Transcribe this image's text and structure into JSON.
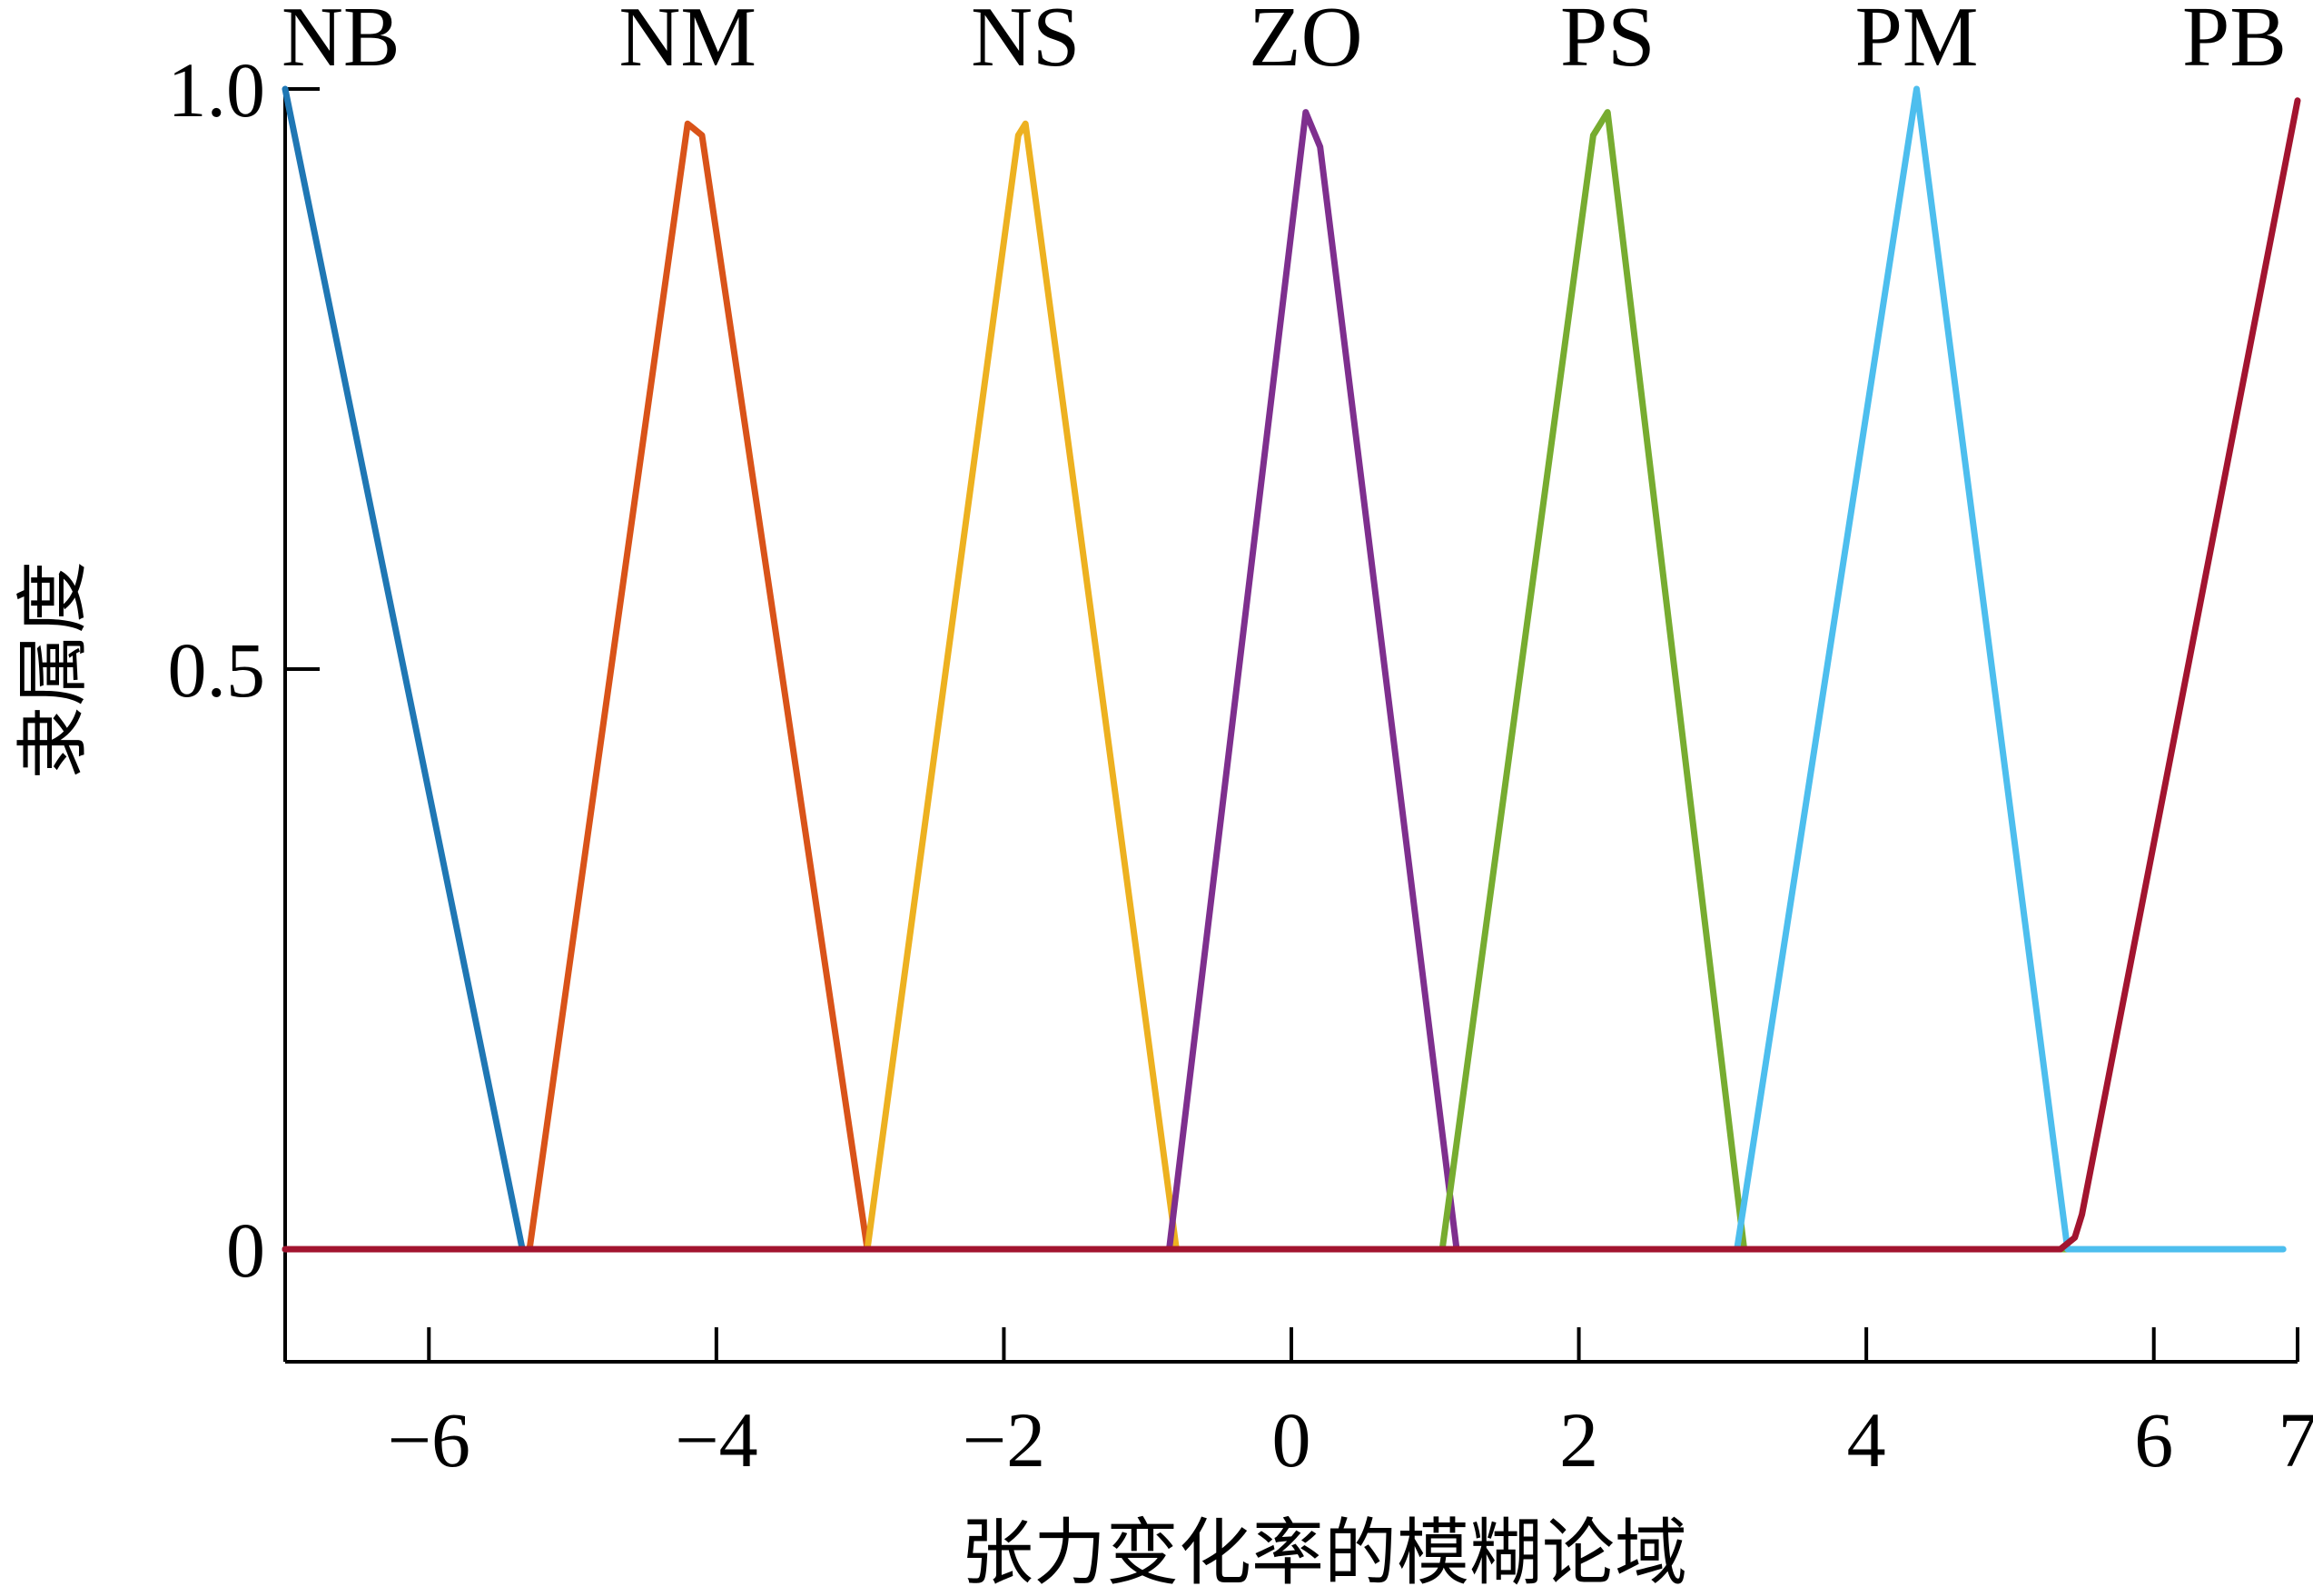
{
  "chart_data": {
    "type": "line",
    "title": "",
    "xlabel": "张力变化率的模糊论域",
    "ylabel": "隶属度",
    "xlim": [
      -7,
      7
    ],
    "ylim": [
      -0.1,
      1.0
    ],
    "grid": false,
    "x_ticks": [
      {
        "value": -6,
        "label": "−6"
      },
      {
        "value": -4,
        "label": "−4"
      },
      {
        "value": -2,
        "label": "−2"
      },
      {
        "value": 0,
        "label": "0"
      },
      {
        "value": 2,
        "label": "2"
      },
      {
        "value": 4,
        "label": "4"
      },
      {
        "value": 6,
        "label": "6"
      },
      {
        "value": 7,
        "label": "7"
      }
    ],
    "y_ticks": [
      {
        "value": 0,
        "label": "0"
      },
      {
        "value": 0.5,
        "label": "0.5"
      },
      {
        "value": 1.0,
        "label": "1.0"
      }
    ],
    "series": [
      {
        "name": "NB",
        "color": "#1f77b4",
        "peak": -7.0,
        "points": [
          [
            -7.0,
            1.0
          ],
          [
            -5.35,
            0.0
          ],
          [
            6.8,
            0.0
          ]
        ]
      },
      {
        "name": "NM",
        "color": "#d95319",
        "peak": -4.2,
        "points": [
          [
            -7.0,
            0.0
          ],
          [
            -5.3,
            0.0
          ],
          [
            -4.2,
            0.97
          ],
          [
            -4.1,
            0.96
          ],
          [
            -2.95,
            0.0
          ],
          [
            6.8,
            0.0
          ]
        ]
      },
      {
        "name": "NS",
        "color": "#edb120",
        "peak": -1.85,
        "points": [
          [
            -7.0,
            0.0
          ],
          [
            -2.95,
            0.0
          ],
          [
            -1.9,
            0.96
          ],
          [
            -1.85,
            0.97
          ],
          [
            -0.8,
            0.0
          ],
          [
            6.8,
            0.0
          ]
        ]
      },
      {
        "name": "ZO",
        "color": "#7e2f8e",
        "peak": 0.1,
        "points": [
          [
            -7.0,
            0.0
          ],
          [
            -0.85,
            0.0
          ],
          [
            0.1,
            0.98
          ],
          [
            0.2,
            0.95
          ],
          [
            1.15,
            0.0
          ],
          [
            6.8,
            0.0
          ]
        ]
      },
      {
        "name": "PS",
        "color": "#77ac30",
        "peak": 2.2,
        "points": [
          [
            -7.0,
            0.0
          ],
          [
            1.05,
            0.0
          ],
          [
            2.1,
            0.96
          ],
          [
            2.2,
            0.98
          ],
          [
            3.15,
            0.0
          ],
          [
            6.8,
            0.0
          ]
        ]
      },
      {
        "name": "PM",
        "color": "#4dbeee",
        "peak": 4.35,
        "points": [
          [
            -7.0,
            0.0
          ],
          [
            3.1,
            0.0
          ],
          [
            4.35,
            1.0
          ],
          [
            5.4,
            0.0
          ],
          [
            6.9,
            0.0
          ]
        ]
      },
      {
        "name": "PB",
        "color": "#a2142f",
        "peak": 7.0,
        "points": [
          [
            -7.0,
            0.0
          ],
          [
            5.35,
            0.0
          ],
          [
            5.45,
            0.01
          ],
          [
            5.5,
            0.03
          ],
          [
            7.0,
            0.99
          ]
        ]
      }
    ]
  }
}
